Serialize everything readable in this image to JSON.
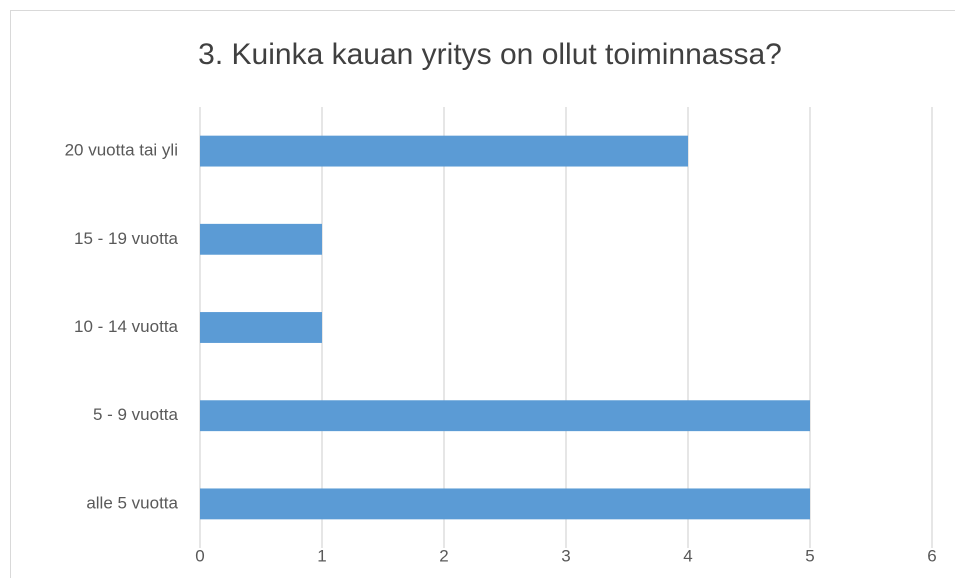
{
  "chart_data": {
    "type": "bar",
    "orientation": "horizontal",
    "title": "3. Kuinka kauan yritys on ollut toiminnassa?",
    "categories": [
      "20 vuotta tai yli",
      "15 - 19 vuotta",
      "10 - 14 vuotta",
      "5 - 9 vuotta",
      "alle 5 vuotta"
    ],
    "values": [
      4,
      1,
      1,
      5,
      5
    ],
    "color": "#5b9bd5",
    "xlim": [
      0,
      6
    ],
    "xticks": [
      0,
      1,
      2,
      3,
      4,
      5,
      6
    ],
    "grid": true
  }
}
